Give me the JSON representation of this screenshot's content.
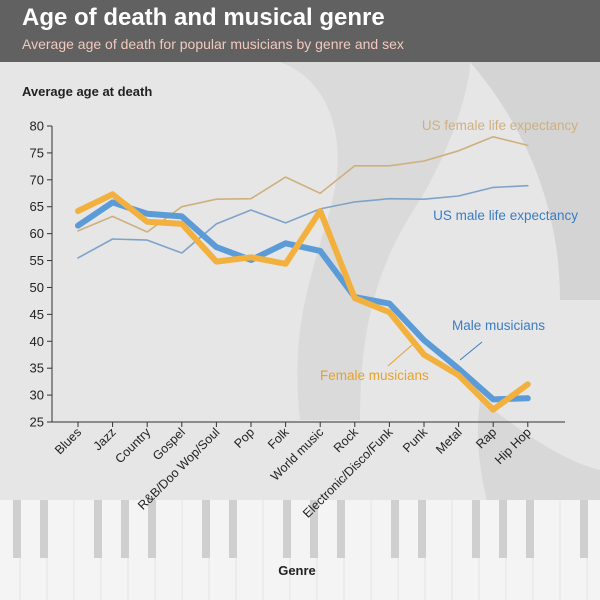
{
  "header": {
    "title": "Age of death and musical genre",
    "subtitle": "Average age of death for popular musicians by genre and sex"
  },
  "colors": {
    "header_bg": "#616161",
    "subtitle": "#f3c9bd",
    "male_musicians": "#5b9bd8",
    "female_musicians": "#f2b13f",
    "us_male_life_expectancy": "#7fa3c8",
    "us_female_life_expectancy": "#cfb07d"
  },
  "chart_data": {
    "type": "line",
    "ylabel": "Average age at death",
    "xlabel": "Genre",
    "ylim": [
      25,
      80
    ],
    "yticks": [
      25,
      30,
      35,
      40,
      45,
      50,
      55,
      60,
      65,
      70,
      75,
      80
    ],
    "grid": false,
    "categories": [
      "Blues",
      "Jazz",
      "Country",
      "Gospel",
      "R&B/Doo Wop/Soul",
      "Pop",
      "Folk",
      "World music",
      "Rock",
      "Electronic/Disco/Funk",
      "Punk",
      "Metal",
      "Rap",
      "Hip Hop"
    ],
    "series": [
      {
        "key": "us_female_life_expectancy",
        "name": "US female life expectancy",
        "style": "thin",
        "values": [
          60.5,
          63.2,
          60.3,
          65.0,
          66.4,
          66.5,
          70.5,
          67.5,
          72.6,
          72.6,
          73.5,
          75.4,
          78.0,
          76.4
        ]
      },
      {
        "key": "us_male_life_expectancy",
        "name": "US male life expectancy",
        "style": "thin",
        "values": [
          55.5,
          59.0,
          58.8,
          56.4,
          61.8,
          64.4,
          62.0,
          64.6,
          65.9,
          66.5,
          66.4,
          67.0,
          68.6,
          68.9
        ]
      },
      {
        "key": "male_musicians",
        "name": "Male musicians",
        "style": "thick",
        "values": [
          61.5,
          65.8,
          63.7,
          63.2,
          57.5,
          55.1,
          58.2,
          56.8,
          48.2,
          47.0,
          40.2,
          34.9,
          29.2,
          29.4
        ]
      },
      {
        "key": "female_musicians",
        "name": "Female musicians",
        "style": "thick",
        "values": [
          64.2,
          67.3,
          62.2,
          61.8,
          54.8,
          55.6,
          54.4,
          64.2,
          48.0,
          45.4,
          37.5,
          33.7,
          27.3,
          32.0
        ]
      }
    ]
  }
}
